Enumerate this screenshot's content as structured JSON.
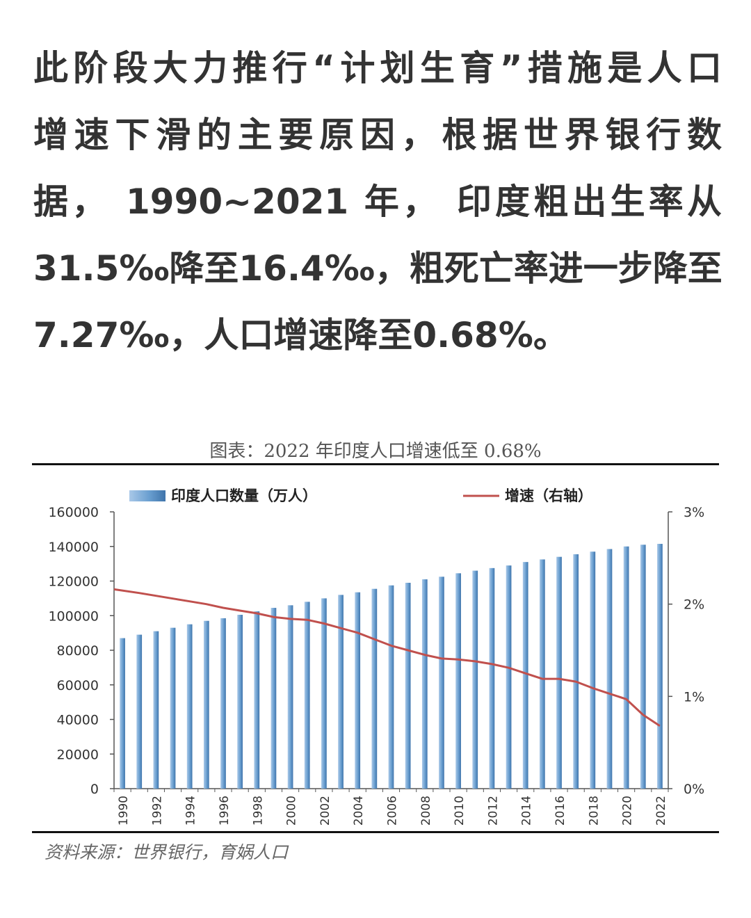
{
  "article": {
    "lines": [
      "此阶段大力推行“计划生育”措施是人口",
      "增速下滑的主要原因，根据世界银行数",
      "据， 1990~2021 年， 印度粗出生率从",
      "31.5‰降至16.4‰，粗死亡率进一步降至",
      "7.27‰，人口增速降至0.68%。"
    ]
  },
  "figure": {
    "title": "图表：2022 年印度人口增速低至 0.68%",
    "source": "资料来源：世界银行，育娲人口"
  },
  "colors": {
    "bar": "#6a9fd0",
    "bar_dark": "#3f74ab",
    "line": "#c0504d",
    "axis": "#555555",
    "text": "#333333"
  },
  "chart_data": {
    "type": "bar",
    "categories": [
      "1990",
      "1991",
      "1992",
      "1993",
      "1994",
      "1995",
      "1996",
      "1997",
      "1998",
      "1999",
      "2000",
      "2001",
      "2002",
      "2003",
      "2004",
      "2005",
      "2006",
      "2007",
      "2008",
      "2009",
      "2010",
      "2011",
      "2012",
      "2013",
      "2014",
      "2015",
      "2016",
      "2017",
      "2018",
      "2019",
      "2020",
      "2021",
      "2022"
    ],
    "x_tick_labels": [
      "1990",
      "1992",
      "1994",
      "1996",
      "1998",
      "2000",
      "2002",
      "2004",
      "2006",
      "2008",
      "2010",
      "2012",
      "2014",
      "2016",
      "2018",
      "2020",
      "2022"
    ],
    "series": [
      {
        "name": "印度人口数量（万人）",
        "type": "bar",
        "axis": "left",
        "values": [
          87000,
          89000,
          91000,
          93000,
          95000,
          97000,
          98500,
          100500,
          102500,
          104500,
          106000,
          108000,
          110000,
          112000,
          113500,
          115500,
          117500,
          119000,
          121000,
          122500,
          124500,
          126000,
          127500,
          129000,
          131000,
          132500,
          134000,
          135500,
          137000,
          138500,
          140000,
          141000,
          141500
        ]
      },
      {
        "name": "增速（右轴）",
        "type": "line",
        "axis": "right",
        "values": [
          2.16,
          2.12,
          2.09,
          2.06,
          2.03,
          2.0,
          1.96,
          1.93,
          1.9,
          1.86,
          1.84,
          1.83,
          1.79,
          1.74,
          1.69,
          1.62,
          1.55,
          1.5,
          1.45,
          1.41,
          1.4,
          1.38,
          1.35,
          1.31,
          1.25,
          1.19,
          1.19,
          1.16,
          1.09,
          1.03,
          0.97,
          0.8,
          0.68
        ]
      }
    ],
    "y_left": {
      "min": 0,
      "max": 160000,
      "ticks": [
        "0",
        "20000",
        "40000",
        "60000",
        "80000",
        "100000",
        "120000",
        "140000",
        "160000"
      ]
    },
    "y_right": {
      "min": 0,
      "max": 3,
      "ticks": [
        "0%",
        "1%",
        "2%",
        "3%"
      ]
    },
    "grid": false,
    "legend_position": "top"
  }
}
